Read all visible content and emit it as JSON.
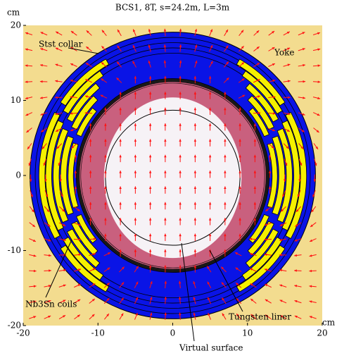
{
  "chart_data": {
    "type": "cross-section",
    "title": "BCS1, 8T, s=24.2m, L=3m",
    "xlabel": "cm",
    "ylabel": "cm",
    "xlim": [
      -20,
      20
    ],
    "ylim": [
      -20,
      20
    ],
    "xticks": [
      -20,
      -10,
      0,
      10,
      20
    ],
    "yticks": [
      -20,
      -10,
      0,
      10,
      20
    ],
    "annotations": [
      "Stst collar",
      "Yoke",
      "Nb3Sn coils",
      "Tungsten liner",
      "Virtual surface"
    ]
  }
}
